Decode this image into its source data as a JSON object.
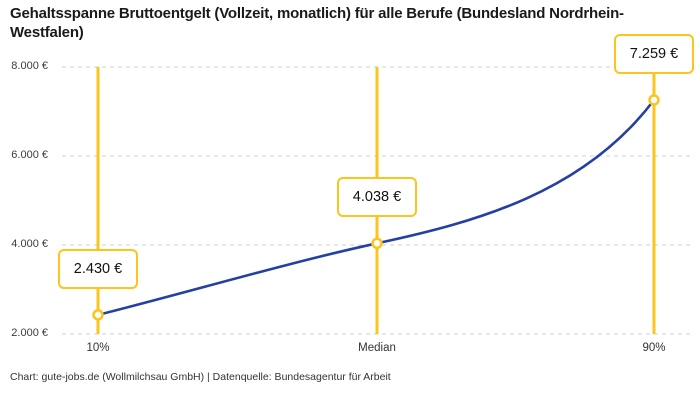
{
  "title": "Gehaltsspanne Bruttoentgelt (Vollzeit, monatlich) für alle Berufe (Bundesland Nordrhein-Westfalen)",
  "footer": "Chart: gute-jobs.de (Wollmilchsau GmbH) | Datenquelle: Bundesagentur für Arbeit",
  "colors": {
    "accent_yellow": "#fcc41d",
    "line_blue": "#2440a5",
    "grid_gray": "#cfcfcf",
    "text_dark": "#1a1a1a"
  },
  "chart_data": {
    "type": "line",
    "title": "Gehaltsspanne Bruttoentgelt (Vollzeit, monatlich) für alle Berufe (Bundesland Nordrhein-Westfalen)",
    "categories": [
      "10%",
      "Median",
      "90%"
    ],
    "values": [
      2430,
      4038,
      7259
    ],
    "value_labels": [
      "2.430 €",
      "4.038 €",
      "7.259 €"
    ],
    "y_ticks": {
      "values": [
        2000,
        4000,
        6000,
        8000
      ],
      "labels": [
        "2.000 €",
        "4.000 €",
        "6.000 €",
        "8.000 €"
      ]
    },
    "ylim": [
      2000,
      8000
    ],
    "xlabel": "",
    "ylabel": "",
    "grid": "horizontal-dashed",
    "legend": "none",
    "marker": "open-circle",
    "source": "Chart: gute-jobs.de (Wollmilchsau GmbH) | Datenquelle: Bundesagentur für Arbeit"
  }
}
